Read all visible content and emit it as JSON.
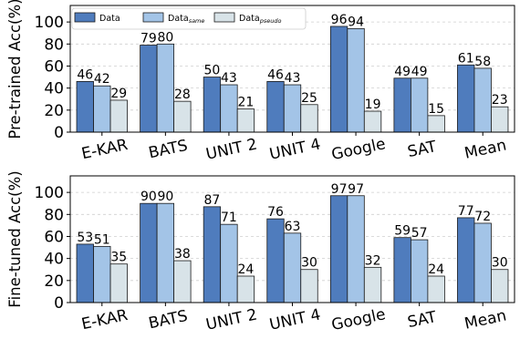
{
  "chart_data": [
    {
      "type": "bar",
      "ylabel": "Pre-trained Acc(%)",
      "ylim": [
        0,
        115
      ],
      "yticks": [
        0,
        20,
        40,
        60,
        80,
        100
      ],
      "grid": true,
      "legend_placement": "top-left",
      "categories": [
        "E-KAR",
        "BATS",
        "UNIT 2",
        "UNIT 4",
        "Google",
        "SAT",
        "Mean"
      ],
      "series": [
        {
          "name": "Data",
          "name_sub": "",
          "color": "#4f7cbd",
          "values": [
            46,
            79,
            50,
            46,
            96,
            49,
            61
          ]
        },
        {
          "name": "Data",
          "name_sub": "same",
          "color": "#a3c4e7",
          "values": [
            42,
            80,
            43,
            43,
            94,
            49,
            58
          ]
        },
        {
          "name": "Data",
          "name_sub": "pseudo",
          "color": "#d8e3e8",
          "values": [
            29,
            28,
            21,
            25,
            19,
            15,
            23
          ]
        }
      ]
    },
    {
      "type": "bar",
      "ylabel": "Fine-tuned Acc(%)",
      "ylim": [
        0,
        115
      ],
      "yticks": [
        0,
        20,
        40,
        60,
        80,
        100
      ],
      "grid": true,
      "categories": [
        "E-KAR",
        "BATS",
        "UNIT 2",
        "UNIT 4",
        "Google",
        "SAT",
        "Mean"
      ],
      "series": [
        {
          "name": "Data",
          "name_sub": "",
          "color": "#4f7cbd",
          "values": [
            53,
            90,
            87,
            76,
            97,
            59,
            77
          ]
        },
        {
          "name": "Data",
          "name_sub": "same",
          "color": "#a3c4e7",
          "values": [
            51,
            90,
            71,
            63,
            97,
            57,
            72
          ]
        },
        {
          "name": "Data",
          "name_sub": "pseudo",
          "color": "#d8e3e8",
          "values": [
            35,
            38,
            24,
            30,
            32,
            24,
            30
          ]
        }
      ]
    }
  ]
}
